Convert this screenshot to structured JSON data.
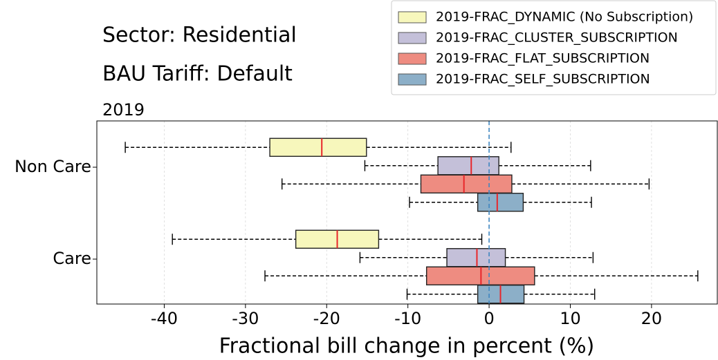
{
  "chart_data": {
    "type": "box",
    "title": "Sector: Residential",
    "subtitle": "BAU Tariff: Default",
    "axes_title": "2019",
    "x_label": "Fractional bill change in percent (%)",
    "categories": [
      "Non Care",
      "Care"
    ],
    "xlim": [
      -48.3,
      28.1
    ],
    "xticks": [
      -40,
      -30,
      -20,
      -10,
      0,
      10,
      20
    ],
    "grid": true,
    "reference_line": 0,
    "legend_position": "upper right",
    "median_color": "#e8262a",
    "series": [
      {
        "name": "2019-FRAC_DYNAMIC (No Subscription)",
        "color": "#f7f7bc",
        "low": [
          -44.8,
          -39.0
        ],
        "q1": [
          -27.0,
          -23.8
        ],
        "median": [
          -20.6,
          -18.7
        ],
        "q3": [
          -15.1,
          -13.6
        ],
        "high": [
          2.7,
          -0.9
        ]
      },
      {
        "name": "2019-FRAC_CLUSTER_SUBSCRIPTION",
        "color": "#c4c0d9",
        "low": [
          -15.3,
          -15.9
        ],
        "q1": [
          -6.3,
          -5.2
        ],
        "median": [
          -2.2,
          -1.5
        ],
        "q3": [
          1.2,
          2.0
        ],
        "high": [
          12.5,
          12.8
        ]
      },
      {
        "name": "2019-FRAC_FLAT_SUBSCRIPTION",
        "color": "#ee8c81",
        "low": [
          -25.5,
          -27.6
        ],
        "q1": [
          -8.4,
          -7.7
        ],
        "median": [
          -3.1,
          -1.0
        ],
        "q3": [
          2.8,
          5.6
        ],
        "high": [
          19.7,
          25.7
        ]
      },
      {
        "name": "2019-FRAC_SELF_SUBSCRIPTION",
        "color": "#8cafc8",
        "low": [
          -9.8,
          -10.1
        ],
        "q1": [
          -1.4,
          -1.4
        ],
        "median": [
          1.0,
          1.4
        ],
        "q3": [
          4.2,
          4.3
        ],
        "high": [
          12.6,
          13.0
        ]
      }
    ]
  }
}
